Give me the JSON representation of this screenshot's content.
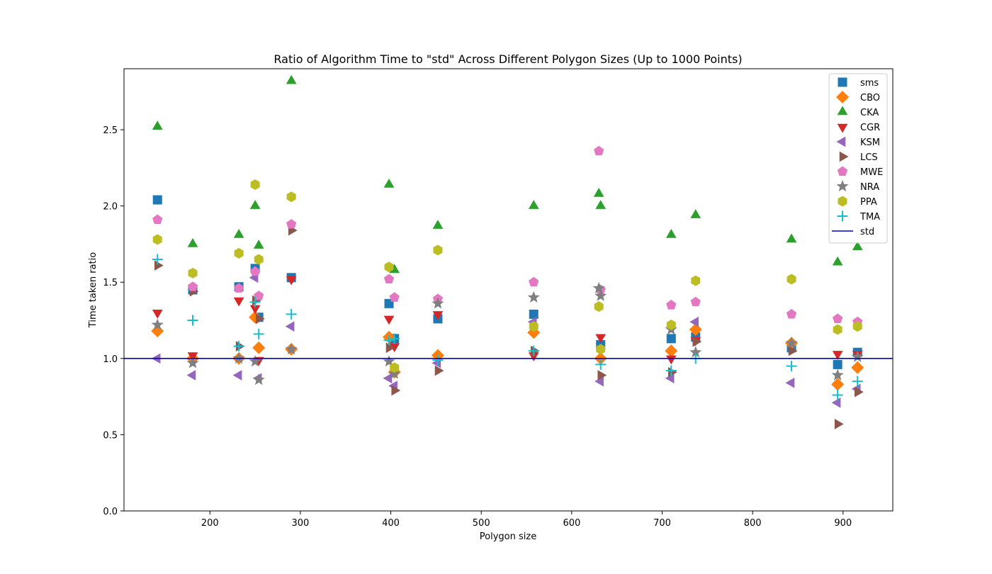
{
  "chart_data": {
    "type": "scatter",
    "title": "Ratio of Algorithm Time to \"std\" Across Different Polygon Sizes (Up to 1000 Points)",
    "xlabel": "Polygon size",
    "ylabel": "Time taken ratio",
    "xlim": [
      105,
      955
    ],
    "ylim": [
      0.0,
      2.9
    ],
    "xticks": [
      "200",
      "300",
      "400",
      "500",
      "600",
      "700",
      "800",
      "900"
    ],
    "yticks": [
      "0.0",
      "0.5",
      "1.0",
      "1.5",
      "2.0",
      "2.5"
    ],
    "legend_position": "top-right",
    "grid": false,
    "reference_line": {
      "name": "std",
      "y": 1.0,
      "color": "#0000cc"
    },
    "series": [
      {
        "name": "sms",
        "marker": "square",
        "color": "#1f77b4",
        "x": [
          142,
          181,
          232,
          250,
          254,
          290,
          398,
          404,
          452,
          558,
          632,
          710,
          737,
          843,
          894,
          916
        ],
        "y": [
          2.04,
          1.45,
          1.47,
          1.59,
          1.27,
          1.53,
          1.36,
          1.13,
          1.26,
          1.29,
          1.09,
          1.13,
          1.14,
          1.07,
          0.96,
          1.04
        ]
      },
      {
        "name": "CBO",
        "marker": "diamond",
        "color": "#ff7f0e",
        "x": [
          142,
          181,
          232,
          250,
          254,
          290,
          398,
          404,
          452,
          558,
          632,
          710,
          737,
          843,
          894,
          916
        ],
        "y": [
          1.18,
          1.0,
          1.0,
          1.27,
          1.07,
          1.06,
          1.14,
          0.91,
          1.02,
          1.17,
          1.0,
          1.05,
          1.19,
          1.1,
          0.83,
          0.94
        ]
      },
      {
        "name": "CKA",
        "marker": "triangle-up",
        "color": "#2ca02c",
        "x": [
          142,
          181,
          232,
          250,
          254,
          290,
          398,
          404,
          452,
          558,
          630,
          632,
          710,
          737,
          843,
          894,
          916
        ],
        "y": [
          2.52,
          1.75,
          1.81,
          2.0,
          1.74,
          2.82,
          2.14,
          1.58,
          1.87,
          2.0,
          2.08,
          2.0,
          1.81,
          1.94,
          1.78,
          1.63,
          1.73
        ]
      },
      {
        "name": "CGR",
        "marker": "triangle-down",
        "color": "#d62728",
        "x": [
          142,
          181,
          232,
          250,
          254,
          290,
          398,
          404,
          452,
          558,
          632,
          710,
          737,
          894,
          916
        ],
        "y": [
          1.3,
          1.02,
          1.38,
          1.33,
          0.99,
          1.52,
          1.26,
          1.08,
          1.29,
          1.02,
          1.14,
          1.0,
          1.12,
          1.03,
          1.03
        ]
      },
      {
        "name": "KSM",
        "marker": "triangle-left",
        "color": "#9467bd",
        "x": [
          142,
          181,
          232,
          250,
          254,
          290,
          398,
          404,
          452,
          558,
          632,
          710,
          737,
          843,
          894,
          916
        ],
        "y": [
          1.0,
          0.89,
          0.89,
          1.53,
          0.87,
          1.21,
          0.87,
          0.82,
          0.97,
          1.24,
          0.85,
          0.87,
          1.24,
          0.84,
          0.71,
          0.8
        ]
      },
      {
        "name": "LCS",
        "marker": "triangle-right",
        "color": "#8c564b",
        "x": [
          142,
          181,
          232,
          250,
          254,
          290,
          398,
          404,
          452,
          558,
          632,
          710,
          737,
          843,
          894,
          916
        ],
        "y": [
          1.61,
          1.44,
          1.08,
          1.38,
          1.26,
          1.84,
          1.07,
          0.79,
          0.92,
          1.05,
          0.89,
          0.91,
          1.11,
          1.05,
          0.57,
          0.78
        ]
      },
      {
        "name": "MWE",
        "marker": "pentagon",
        "color": "#e377c2",
        "x": [
          142,
          181,
          232,
          250,
          254,
          290,
          398,
          404,
          452,
          558,
          630,
          632,
          710,
          737,
          843,
          894,
          916
        ],
        "y": [
          1.91,
          1.47,
          1.46,
          1.57,
          1.41,
          1.88,
          1.52,
          1.4,
          1.39,
          1.5,
          2.36,
          1.45,
          1.35,
          1.37,
          1.29,
          1.26,
          1.24
        ]
      },
      {
        "name": "NRA",
        "marker": "star",
        "color": "#7f7f7f",
        "x": [
          142,
          181,
          232,
          250,
          254,
          290,
          398,
          404,
          452,
          558,
          630,
          632,
          710,
          737,
          843,
          894,
          916
        ],
        "y": [
          1.22,
          0.97,
          1.0,
          0.98,
          0.86,
          1.06,
          0.98,
          0.9,
          1.36,
          1.4,
          1.46,
          1.41,
          1.19,
          1.04,
          1.1,
          0.89,
          1.01
        ]
      },
      {
        "name": "PPA",
        "marker": "hexagon",
        "color": "#bcbd22",
        "x": [
          142,
          181,
          232,
          250,
          254,
          290,
          398,
          404,
          452,
          558,
          630,
          632,
          710,
          737,
          843,
          894,
          916
        ],
        "y": [
          1.78,
          1.56,
          1.69,
          2.14,
          1.65,
          2.06,
          1.6,
          0.94,
          1.71,
          1.21,
          1.34,
          1.06,
          1.22,
          1.51,
          1.52,
          1.19,
          1.21
        ]
      },
      {
        "name": "TMA",
        "marker": "plus",
        "color": "#17becf",
        "x": [
          142,
          181,
          232,
          250,
          254,
          290,
          398,
          404,
          452,
          558,
          632,
          710,
          737,
          843,
          894,
          916
        ],
        "y": [
          1.65,
          1.25,
          1.08,
          1.37,
          1.16,
          1.29,
          1.12,
          1.13,
          0.99,
          1.05,
          0.96,
          0.92,
          1.0,
          0.95,
          0.76,
          0.85
        ]
      }
    ]
  }
}
